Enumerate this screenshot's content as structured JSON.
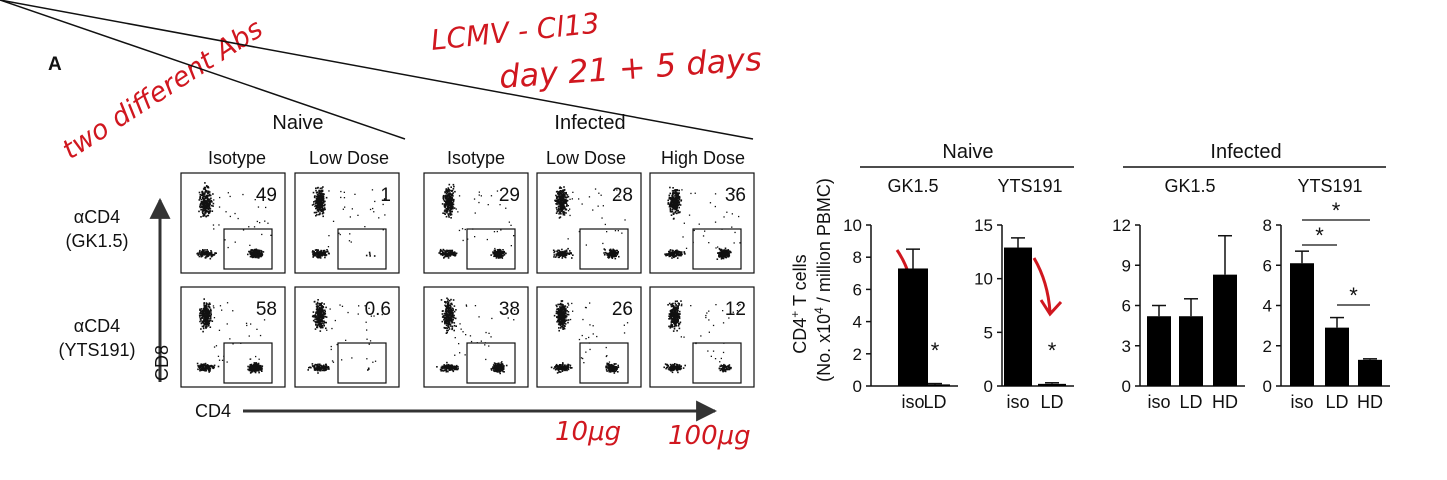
{
  "panel_label": "A",
  "annotations": {
    "note_antibodies": "two different Abs",
    "note_virus": "LCMV - Cl13",
    "note_time": "day 21 + 5 days",
    "note_low_dose": "10μg",
    "note_high_dose": "100μg",
    "color": "#d0171f"
  },
  "flow": {
    "groups": [
      {
        "label": "Naive",
        "columns": [
          "Isotype",
          "Low Dose"
        ]
      },
      {
        "label": "Infected",
        "columns": [
          "Isotype",
          "Low Dose",
          "High Dose"
        ]
      }
    ],
    "rows": [
      {
        "label_line1": "αCD4",
        "label_line2": "(GK1.5)",
        "values": [
          "49",
          "1",
          "29",
          "28",
          "36"
        ]
      },
      {
        "label_line1": "αCD4",
        "label_line2": "(YTS191)",
        "values": [
          "58",
          "0.6",
          "38",
          "26",
          "12"
        ]
      }
    ],
    "y_axis_label": "CD8",
    "x_axis_label": "CD4"
  },
  "chart_data": [
    {
      "type": "bar",
      "group": "Naive",
      "title": "GK1.5",
      "ylabel": "CD4⁺ T cells (No. x10⁴ / million PBMC)",
      "categories": [
        "iso",
        "LD"
      ],
      "values": [
        7.3,
        0.1
      ],
      "errors": [
        1.2,
        0.05
      ],
      "ylim": [
        0,
        10
      ],
      "yticks": [
        0,
        2,
        4,
        6,
        8,
        10
      ],
      "significance": [
        {
          "label": "*",
          "over": "LD"
        }
      ]
    },
    {
      "type": "bar",
      "group": "Naive",
      "title": "YTS191",
      "categories": [
        "iso",
        "LD"
      ],
      "values": [
        12.9,
        0.2
      ],
      "errors": [
        0.9,
        0.1
      ],
      "ylim": [
        0,
        15
      ],
      "yticks": [
        0,
        5,
        10,
        15
      ],
      "significance": [
        {
          "label": "*",
          "over": "LD"
        }
      ]
    },
    {
      "type": "bar",
      "group": "Infected",
      "title": "GK1.5",
      "categories": [
        "iso",
        "LD",
        "HD"
      ],
      "values": [
        5.2,
        5.2,
        8.3
      ],
      "errors": [
        0.8,
        1.3,
        2.9
      ],
      "ylim": [
        0,
        12
      ],
      "yticks": [
        0,
        3,
        6,
        9,
        12
      ]
    },
    {
      "type": "bar",
      "group": "Infected",
      "title": "YTS191",
      "categories": [
        "iso",
        "LD",
        "HD"
      ],
      "values": [
        6.1,
        2.9,
        1.3
      ],
      "errors": [
        0.6,
        0.5,
        0.05
      ],
      "ylim": [
        0,
        8
      ],
      "yticks": [
        0,
        2,
        4,
        6,
        8
      ],
      "significance": [
        {
          "label": "*",
          "from": "iso",
          "to": "LD"
        },
        {
          "label": "*",
          "from": "iso",
          "to": "HD"
        },
        {
          "label": "*",
          "from": "LD",
          "to": "HD"
        }
      ]
    }
  ]
}
